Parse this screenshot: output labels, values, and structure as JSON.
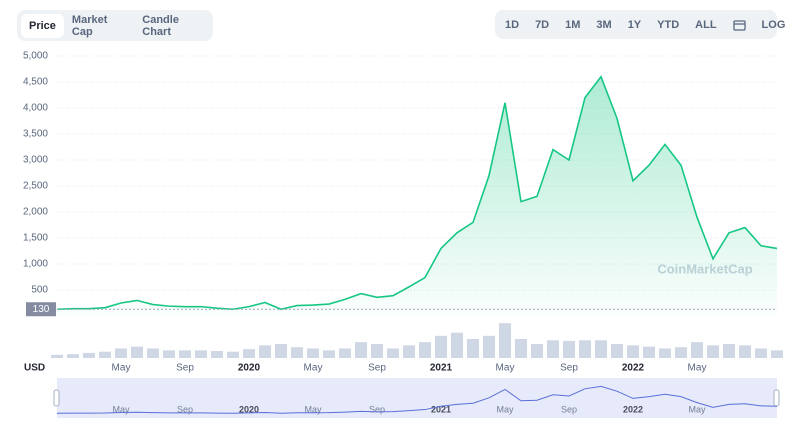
{
  "tabs": [
    "Price",
    "Market Cap",
    "Candle Chart"
  ],
  "range_buttons": [
    "1D",
    "7D",
    "1M",
    "3M",
    "1Y",
    "YTD",
    "ALL"
  ],
  "log_button": "LOG",
  "chart_data": {
    "type": "line",
    "currency": "USD",
    "watermark": "CoinMarketCap",
    "price_marker": 130,
    "categories": [
      null,
      null,
      null,
      null,
      "May",
      null,
      null,
      null,
      "Sep",
      null,
      null,
      null,
      "2020",
      null,
      null,
      null,
      "May",
      null,
      null,
      null,
      "Sep",
      null,
      null,
      null,
      "2021",
      null,
      null,
      null,
      "May",
      null,
      null,
      null,
      "Sep",
      null,
      null,
      null,
      "2022",
      null,
      null,
      null,
      "May",
      null,
      null,
      null,
      null,
      null
    ],
    "series": [
      {
        "name": "Price",
        "color": "#16c784",
        "values": [
          130,
          140,
          140,
          160,
          250,
          300,
          220,
          190,
          180,
          180,
          150,
          130,
          180,
          260,
          130,
          200,
          210,
          230,
          320,
          430,
          360,
          390,
          560,
          740,
          1300,
          1600,
          1800,
          2700,
          4100,
          2200,
          2300,
          3200,
          3000,
          4200,
          4600,
          3800,
          2600,
          2900,
          3300,
          2900,
          1900,
          1100,
          1600,
          1700,
          1350,
          1300
        ]
      },
      {
        "name": "Volume",
        "color": "#cfd6e4",
        "axis": "y2",
        "values": [
          5,
          6,
          8,
          10,
          15,
          18,
          15,
          12,
          12,
          12,
          11,
          10,
          14,
          20,
          22,
          17,
          15,
          12,
          15,
          25,
          22,
          15,
          20,
          25,
          35,
          40,
          30,
          35,
          55,
          30,
          22,
          28,
          27,
          28,
          28,
          22,
          20,
          18,
          15,
          17,
          25,
          20,
          22,
          20,
          15,
          12
        ]
      }
    ],
    "ylim": [
      0,
      5000
    ],
    "yticks": [
      500,
      {
        "value": 1000,
        "label": "1,000"
      },
      {
        "value": 1500,
        "label": "1,500"
      },
      {
        "value": 2000,
        "label": "2,000"
      },
      {
        "value": 2500,
        "label": "2,500"
      },
      {
        "value": 3000,
        "label": "3,000"
      },
      {
        "value": 3500,
        "label": "3,500"
      },
      {
        "value": 4000,
        "label": "4,000"
      },
      {
        "value": 4500,
        "label": "4,500"
      },
      {
        "value": 5000,
        "label": "5,000"
      }
    ],
    "y2lim": [
      0,
      60
    ],
    "grid": true
  }
}
